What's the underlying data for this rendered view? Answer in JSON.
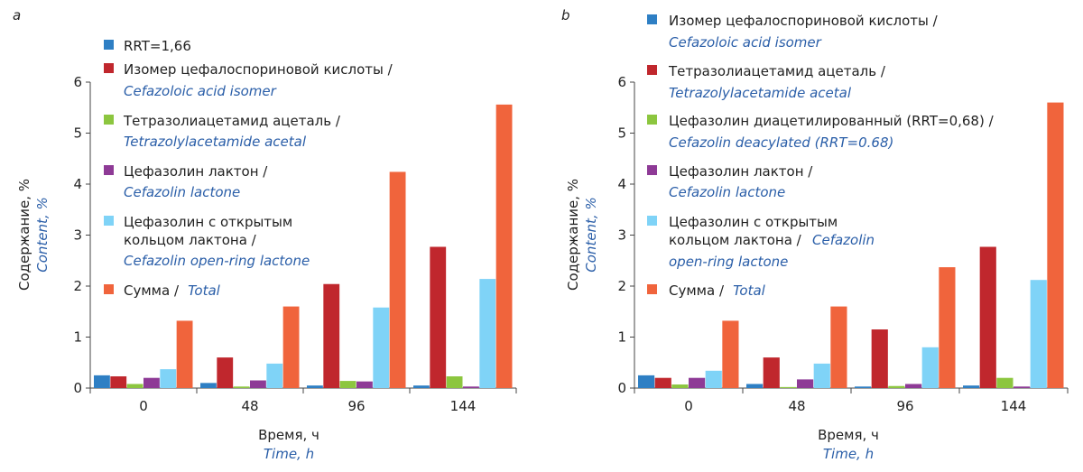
{
  "chart_data": [
    {
      "type": "bar",
      "panel_label": "a",
      "categories": [
        "0",
        "48",
        "96",
        "144"
      ],
      "ylim": [
        0,
        6
      ],
      "yticks": [
        "0",
        "1",
        "2",
        "3",
        "4",
        "5",
        "6"
      ],
      "ylabel_ru": "Содержание, %",
      "ylabel_en": "Content, %",
      "xlabel_ru": "Время, ч",
      "xlabel_en": "Time, h",
      "grid": false,
      "legend_position": "top-left",
      "series": [
        {
          "name_ru": "RRT=1,66",
          "name_en": "",
          "color": "#2e7fc4",
          "values": [
            0.25,
            0.1,
            0.05,
            0.05
          ]
        },
        {
          "name_ru": "Изомер цефалоспориновой кислоты /",
          "name_en": "Cefazoloic acid isomer",
          "color": "#c0272d",
          "values": [
            0.23,
            0.6,
            2.04,
            2.77
          ]
        },
        {
          "name_ru": "Тетразолиацетамид ацеталь /",
          "name_en": "Tetrazolylacetamide acetal",
          "color": "#8cc63f",
          "values": [
            0.08,
            0.03,
            0.14,
            0.23
          ]
        },
        {
          "name_ru": "Цефазолин лактон /",
          "name_en": "Cefazolin lactone",
          "color": "#8e3a96",
          "values": [
            0.2,
            0.15,
            0.13,
            0.03
          ]
        },
        {
          "name_ru": "Цефазолин с открытым кольцом лактона /",
          "name_en": "Cefazolin open-ring lactone",
          "color": "#7fd3f7",
          "values": [
            0.37,
            0.48,
            1.58,
            2.14
          ]
        },
        {
          "name_ru": "Сумма /",
          "name_en": "Total",
          "color": "#f0643c",
          "values": [
            1.32,
            1.6,
            4.24,
            5.56
          ]
        }
      ]
    },
    {
      "type": "bar",
      "panel_label": "b",
      "categories": [
        "0",
        "48",
        "96",
        "144"
      ],
      "ylim": [
        0,
        6
      ],
      "yticks": [
        "0",
        "1",
        "2",
        "3",
        "4",
        "5",
        "6"
      ],
      "ylabel_ru": "Содержание, %",
      "ylabel_en": "Content, %",
      "xlabel_ru": "Время, ч",
      "xlabel_en": "Time, h",
      "grid": false,
      "legend_position": "top-left",
      "series": [
        {
          "name_ru": "Изомер цефалоспориновой кислоты /",
          "name_en": "Cefazoloic acid isomer",
          "color": "#2e7fc4",
          "values": [
            0.25,
            0.08,
            0.03,
            0.05
          ]
        },
        {
          "name_ru": "Тетразолиацетамид ацеталь /",
          "name_en": "Tetrazolylacetamide acetal",
          "color": "#c0272d",
          "values": [
            0.2,
            0.6,
            1.15,
            2.77
          ]
        },
        {
          "name_ru": "Цефазолин диацетилированный (RRT=0,68) /",
          "name_en": "Cefazolin deacylated (RRT=0.68)",
          "color": "#8cc63f",
          "values": [
            0.07,
            0.02,
            0.04,
            0.2
          ]
        },
        {
          "name_ru": "Цефазолин лактон /",
          "name_en": "Cefazolin lactone",
          "color": "#8e3a96",
          "values": [
            0.2,
            0.17,
            0.08,
            0.03
          ]
        },
        {
          "name_ru": "Цефазолин с открытым кольцом лактона /",
          "name_en": "Cefazolin open-ring lactone",
          "color": "#7fd3f7",
          "values": [
            0.34,
            0.48,
            0.8,
            2.12
          ]
        },
        {
          "name_ru": "Сумма /",
          "name_en": "Total",
          "color": "#f0643c",
          "values": [
            1.32,
            1.6,
            2.37,
            5.6
          ]
        }
      ]
    }
  ]
}
